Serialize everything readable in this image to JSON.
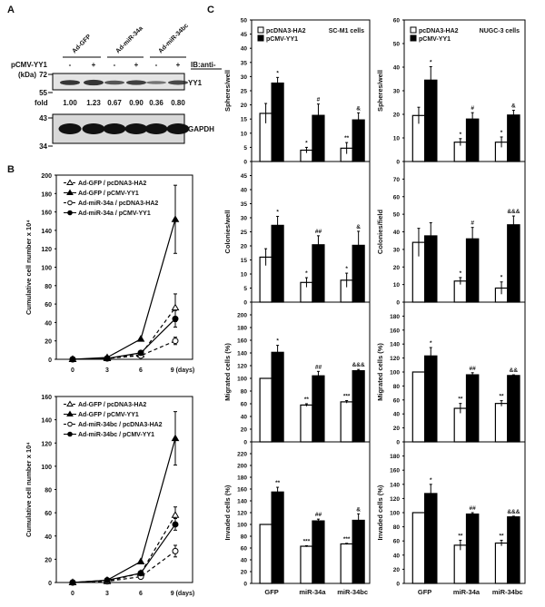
{
  "panel_labels": {
    "a": "A",
    "b": "B",
    "c": "C"
  },
  "blot": {
    "lanes_groups": [
      "Ad-GFP",
      "Ad-miR-34a",
      "Ad-miR-34bc"
    ],
    "row_label": "pCMV-YY1",
    "signs": [
      "-",
      "+",
      "-",
      "+",
      "-",
      "+"
    ],
    "ib_label": "IB:anti-",
    "kda_label": "(kDa)",
    "markers": [
      "72",
      "55",
      "43",
      "34"
    ],
    "fold_label": "fold",
    "fold_values": [
      "1.00",
      "1.23",
      "0.67",
      "0.90",
      "0.36",
      "0.80"
    ],
    "bands": [
      "YY1",
      "GAPDH"
    ],
    "yy1_intensity": [
      1.0,
      1.23,
      0.67,
      0.9,
      0.36,
      0.8
    ]
  },
  "chart_data": [
    {
      "type": "line",
      "panel": "B-top",
      "ylabel": "Cumulative cell number x 10⁴",
      "x": [
        0,
        3,
        6,
        9
      ],
      "xtick_labels": [
        "0",
        "3",
        "6",
        "9 (days)"
      ],
      "ylim": [
        0,
        200
      ],
      "yticks": [
        "0",
        "20",
        "40",
        "60",
        "80",
        "100",
        "120",
        "140",
        "160",
        "180",
        "200"
      ],
      "legend_position": "top-left",
      "series": [
        {
          "name": "Ad-GFP / pcDNA3-HA2",
          "marker": "open-triangle",
          "dash": true,
          "values": [
            0,
            1,
            5,
            56
          ],
          "err": [
            0,
            0.5,
            1,
            15
          ]
        },
        {
          "name": "Ad-GFP / pCMV-YY1",
          "marker": "filled-triangle",
          "dash": false,
          "values": [
            0,
            2,
            22,
            152
          ],
          "err": [
            0,
            0.5,
            1,
            37
          ]
        },
        {
          "name": "Ad-miR-34a / pcDNA3-HA2",
          "marker": "open-circle",
          "dash": true,
          "values": [
            0,
            1,
            4,
            20
          ],
          "err": [
            0,
            0.5,
            1,
            4
          ]
        },
        {
          "name": "Ad-miR-34a / pCMV-YY1",
          "marker": "filled-circle",
          "dash": false,
          "values": [
            0,
            1,
            7,
            44
          ],
          "err": [
            0,
            0.5,
            1,
            9
          ]
        }
      ]
    },
    {
      "type": "line",
      "panel": "B-bottom",
      "ylabel": "Cumulative cell number x 10⁴",
      "x": [
        0,
        3,
        6,
        9
      ],
      "xtick_labels": [
        "0",
        "3",
        "6",
        "9 (days)"
      ],
      "ylim": [
        0,
        160
      ],
      "yticks": [
        "0",
        "20",
        "40",
        "60",
        "80",
        "100",
        "120",
        "140",
        "160"
      ],
      "legend_position": "top-left",
      "series": [
        {
          "name": "Ad-GFP / pcDNA3-HA2",
          "marker": "open-triangle",
          "dash": true,
          "values": [
            0,
            1,
            8,
            58
          ],
          "err": [
            0,
            0.5,
            1,
            7
          ]
        },
        {
          "name": "Ad-GFP / pCMV-YY1",
          "marker": "filled-triangle",
          "dash": false,
          "values": [
            0,
            2,
            18,
            124
          ],
          "err": [
            0,
            0.5,
            1,
            23
          ]
        },
        {
          "name": "Ad-miR-34bc / pcDNA3-HA2",
          "marker": "open-circle",
          "dash": true,
          "values": [
            0,
            1,
            5,
            27
          ],
          "err": [
            0,
            0.5,
            1,
            5
          ]
        },
        {
          "name": "Ad-miR-34bc / pCMV-YY1",
          "marker": "filled-circle",
          "dash": false,
          "values": [
            0,
            2,
            8,
            50
          ],
          "err": [
            0,
            0.5,
            1,
            5
          ]
        }
      ]
    },
    {
      "type": "bar",
      "panel": "C-SC-M1-spheres",
      "title": "SC-M1 cells",
      "ylabel": "Spheres/well",
      "ylim": [
        0,
        50
      ],
      "yticks": [
        "0",
        "5",
        "10",
        "15",
        "20",
        "25",
        "30",
        "35",
        "40",
        "45",
        "50"
      ],
      "categories": [
        "GFP",
        "miR-34a",
        "miR-34bc"
      ],
      "legend_position": "top-left",
      "series": [
        {
          "name": "pcDNA3-HA2",
          "values": [
            17,
            4,
            4.7
          ],
          "err": [
            3.5,
            1,
            2
          ],
          "marks": [
            "",
            "*",
            "**"
          ]
        },
        {
          "name": "pCMV-YY1",
          "values": [
            27.7,
            16.3,
            14.7
          ],
          "err": [
            2,
            4,
            2.5
          ],
          "marks": [
            "*",
            "#",
            "&"
          ]
        }
      ]
    },
    {
      "type": "bar",
      "panel": "C-SC-M1-colonies",
      "ylabel": "Colonies/well",
      "ylim": [
        0,
        50
      ],
      "yticks": [
        "0",
        "5",
        "10",
        "15",
        "20",
        "25",
        "30",
        "35",
        "40",
        "45"
      ],
      "categories": [
        "GFP",
        "miR-34a",
        "miR-34bc"
      ],
      "series": [
        {
          "name": "pcDNA3-HA2",
          "values": [
            16,
            7,
            7.8
          ],
          "err": [
            3,
            1.7,
            2.5
          ],
          "marks": [
            "",
            "*",
            "*"
          ]
        },
        {
          "name": "pCMV-YY1",
          "values": [
            27.3,
            20.4,
            20.2
          ],
          "err": [
            3.2,
            3.2,
            5
          ],
          "marks": [
            "*",
            "##",
            "&"
          ]
        }
      ]
    },
    {
      "type": "bar",
      "panel": "C-SC-M1-migrated",
      "ylabel": "Migrated cells (%)",
      "ylim": [
        0,
        220
      ],
      "yticks": [
        "0",
        "20",
        "40",
        "60",
        "80",
        "100",
        "120",
        "140",
        "160",
        "180",
        "200"
      ],
      "categories": [
        "GFP",
        "miR-34a",
        "miR-34bc"
      ],
      "series": [
        {
          "name": "pcDNA3-HA2",
          "values": [
            100,
            58,
            63
          ],
          "err": [
            0,
            2,
            2
          ],
          "marks": [
            "",
            "**",
            "***"
          ]
        },
        {
          "name": "pCMV-YY1",
          "values": [
            141,
            104,
            112
          ],
          "err": [
            11,
            7,
            2
          ],
          "marks": [
            "*",
            "##",
            "&&&"
          ]
        }
      ]
    },
    {
      "type": "bar",
      "panel": "C-SC-M1-invaded",
      "ylabel": "Invaded cells (%)",
      "ylim": [
        0,
        240
      ],
      "yticks": [
        "0",
        "20",
        "40",
        "60",
        "80",
        "100",
        "120",
        "140",
        "160",
        "180",
        "200",
        "220"
      ],
      "categories": [
        "GFP",
        "miR-34a",
        "miR-34bc"
      ],
      "series": [
        {
          "name": "pcDNA3-HA2",
          "values": [
            100,
            63,
            67
          ],
          "err": [
            0,
            1,
            1
          ],
          "marks": [
            "",
            "***",
            "***"
          ]
        },
        {
          "name": "pCMV-YY1",
          "values": [
            155,
            106,
            107
          ],
          "err": [
            8,
            3,
            11
          ],
          "marks": [
            "**",
            "##",
            "&"
          ]
        }
      ]
    },
    {
      "type": "bar",
      "panel": "C-NUGC-3-spheres",
      "title": "NUGC-3 cells",
      "ylabel": "Spheres/well",
      "ylim": [
        0,
        60
      ],
      "yticks": [
        "0",
        "10",
        "20",
        "30",
        "40",
        "50",
        "60"
      ],
      "categories": [
        "GFP",
        "miR-34a",
        "miR-34bc"
      ],
      "legend_position": "top-left",
      "series": [
        {
          "name": "pcDNA3-HA2",
          "values": [
            19.5,
            8.2,
            8.2
          ],
          "err": [
            3.5,
            1.5,
            2.2
          ],
          "marks": [
            "",
            "*",
            "*"
          ]
        },
        {
          "name": "pCMV-YY1",
          "values": [
            34.5,
            18,
            19.7
          ],
          "err": [
            5.7,
            2.7,
            2
          ],
          "marks": [
            "*",
            "#",
            "&"
          ]
        }
      ]
    },
    {
      "type": "bar",
      "panel": "C-NUGC-3-colonies",
      "ylabel": "Colonies/field",
      "ylim": [
        0,
        80
      ],
      "yticks": [
        "0",
        "10",
        "20",
        "30",
        "40",
        "50",
        "60",
        "70"
      ],
      "categories": [
        "GFP",
        "miR-34a",
        "miR-34bc"
      ],
      "series": [
        {
          "name": "pcDNA3-HA2",
          "values": [
            34,
            12,
            8
          ],
          "err": [
            8,
            2,
            3.5
          ],
          "marks": [
            "",
            "*",
            "*"
          ]
        },
        {
          "name": "pCMV-YY1",
          "values": [
            37.7,
            36,
            44
          ],
          "err": [
            7.5,
            6.5,
            5
          ],
          "marks": [
            "",
            "#",
            "&&&"
          ]
        }
      ]
    },
    {
      "type": "bar",
      "panel": "C-NUGC-3-migrated",
      "ylabel": "Migrated cells (%)",
      "ylim": [
        0,
        200
      ],
      "yticks": [
        "0",
        "20",
        "40",
        "60",
        "80",
        "100",
        "120",
        "140",
        "160",
        "180"
      ],
      "categories": [
        "GFP",
        "miR-34a",
        "miR-34bc"
      ],
      "series": [
        {
          "name": "pcDNA3-HA2",
          "values": [
            100,
            48,
            55
          ],
          "err": [
            0,
            7,
            4
          ],
          "marks": [
            "",
            "**",
            "**"
          ]
        },
        {
          "name": "pCMV-YY1",
          "values": [
            123,
            96,
            95
          ],
          "err": [
            12,
            3,
            1
          ],
          "marks": [
            "*",
            "##",
            "&&"
          ]
        }
      ]
    },
    {
      "type": "bar",
      "panel": "C-NUGC-3-invaded",
      "ylabel": "Invaded cells (%)",
      "ylim": [
        0,
        200
      ],
      "yticks": [
        "0",
        "20",
        "40",
        "60",
        "80",
        "100",
        "120",
        "140",
        "160",
        "180"
      ],
      "categories": [
        "GFP",
        "miR-34a",
        "miR-34bc"
      ],
      "series": [
        {
          "name": "pcDNA3-HA2",
          "values": [
            100,
            54,
            57
          ],
          "err": [
            0,
            7,
            4
          ],
          "marks": [
            "",
            "**",
            "**"
          ]
        },
        {
          "name": "pCMV-YY1",
          "values": [
            127,
            98,
            94
          ],
          "err": [
            13,
            2,
            1
          ],
          "marks": [
            "*",
            "##",
            "&&&"
          ]
        }
      ]
    }
  ]
}
